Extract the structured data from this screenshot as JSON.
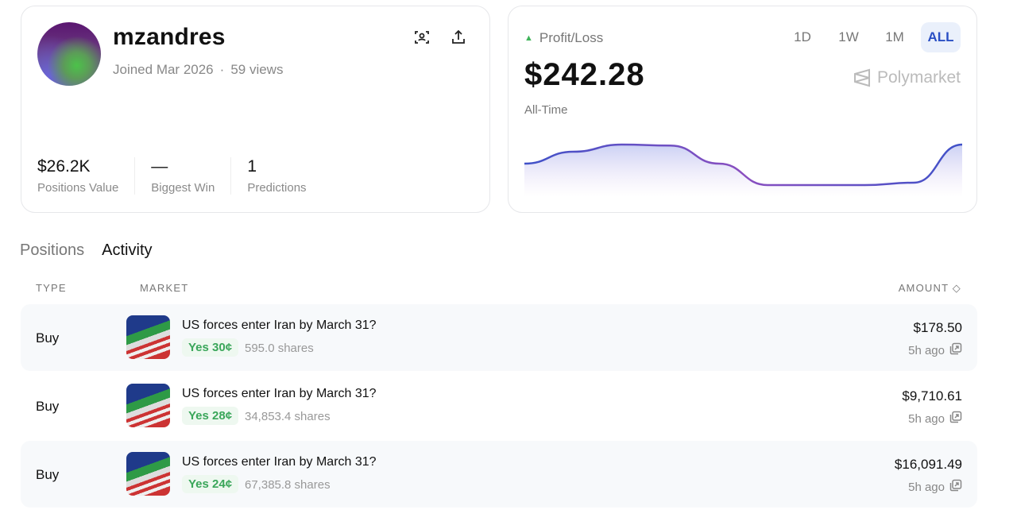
{
  "profile": {
    "username": "mzandres",
    "joined": "Joined Mar 2026",
    "views": "59 views",
    "separator": "·",
    "stats": [
      {
        "value": "$26.2K",
        "label": "Positions Value"
      },
      {
        "value": "—",
        "label": "Biggest Win"
      },
      {
        "value": "1",
        "label": "Predictions"
      }
    ],
    "icons": [
      "face-scan-icon",
      "share-upload-icon"
    ]
  },
  "pnl": {
    "label": "Profit/Loss",
    "value": "$242.28",
    "period": "All-Time",
    "ranges": [
      "1D",
      "1W",
      "1M",
      "ALL"
    ],
    "active_range": "ALL",
    "brand": "Polymarket",
    "accent": "#3f51c8",
    "positive_color": "#3fb45a"
  },
  "chart_data": {
    "type": "area",
    "values": [
      0.5,
      0.75,
      0.9,
      0.88,
      0.5,
      0.05,
      0.05,
      0.05,
      0.1,
      0.9
    ],
    "grid": false,
    "legend": "none"
  },
  "tabs": [
    {
      "label": "Positions"
    },
    {
      "label": "Activity"
    }
  ],
  "active_tab": "Activity",
  "table": {
    "headers": {
      "type": "TYPE",
      "market": "MARKET",
      "amount": "AMOUNT"
    },
    "rows": [
      {
        "type": "Buy",
        "market": "US forces enter Iran by March 31?",
        "outcome": "Yes 30¢",
        "shares": "595.0 shares",
        "amount": "$178.50",
        "time": "5h ago"
      },
      {
        "type": "Buy",
        "market": "US forces enter Iran by March 31?",
        "outcome": "Yes 28¢",
        "shares": "34,853.4 shares",
        "amount": "$9,710.61",
        "time": "5h ago"
      },
      {
        "type": "Buy",
        "market": "US forces enter Iran by March 31?",
        "outcome": "Yes 24¢",
        "shares": "67,385.8 shares",
        "amount": "$16,091.49",
        "time": "5h ago"
      }
    ]
  }
}
